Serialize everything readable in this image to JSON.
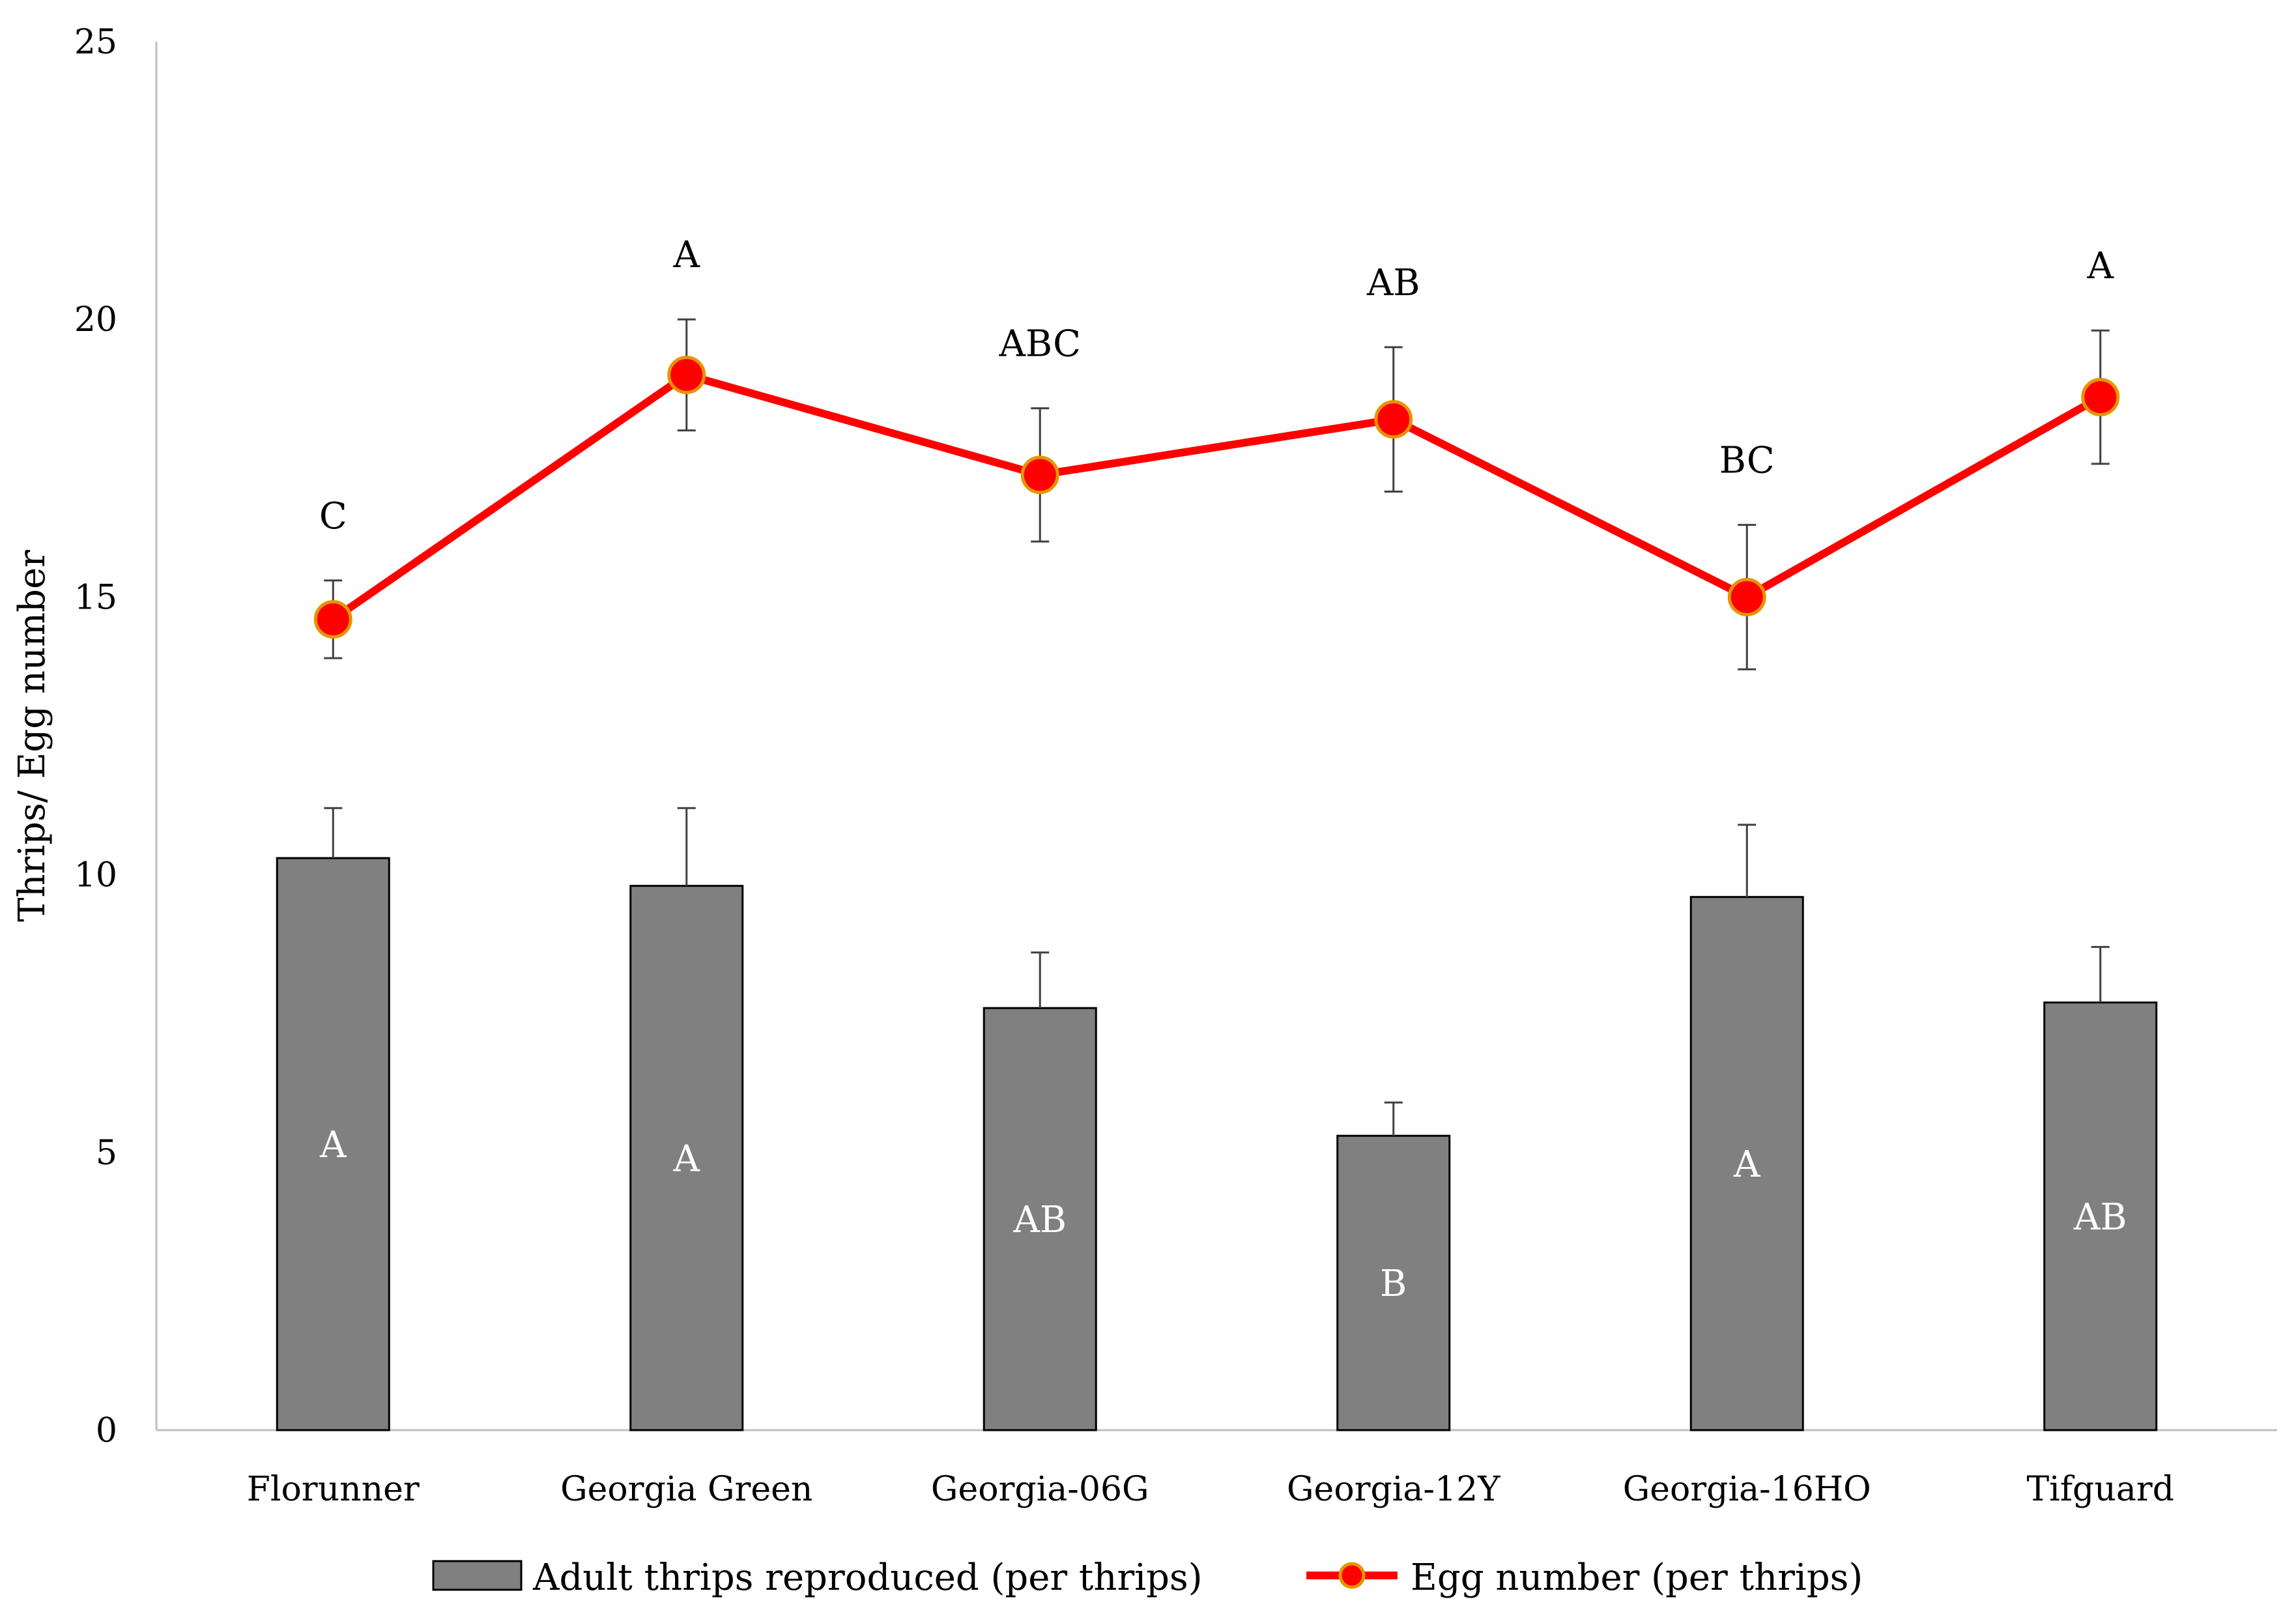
{
  "chart_data": {
    "type": "bar",
    "title": "",
    "xlabel": "",
    "ylabel": "Thrips/ Egg number",
    "ylim": [
      0,
      25
    ],
    "yticks": [
      0,
      5,
      10,
      15,
      20,
      25
    ],
    "grid": false,
    "legend_position": "bottom",
    "categories": [
      "Florunner",
      "Georgia Green",
      "Georgia-06G",
      "Georgia-12Y",
      "Georgia-16HO",
      "Tifguard"
    ],
    "series": [
      {
        "name": "Adult thrips reproduced (per thrips)",
        "kind": "bar",
        "color": "#808080",
        "values": [
          10.3,
          9.8,
          7.6,
          5.3,
          9.6,
          7.7
        ],
        "error": [
          0.9,
          1.4,
          1.0,
          0.6,
          1.3,
          1.0
        ],
        "significance": [
          "A",
          "A",
          "AB",
          "B",
          "A",
          "AB"
        ]
      },
      {
        "name": "Egg number (per thrips)",
        "kind": "line",
        "color": "#ff0000",
        "marker_edge": "#e69500",
        "values": [
          14.6,
          19.0,
          17.2,
          18.2,
          15.0,
          18.6
        ],
        "error": [
          0.7,
          1.0,
          1.2,
          1.3,
          1.3,
          1.2
        ],
        "significance": [
          "C",
          "A",
          "ABC",
          "AB",
          "BC",
          "A"
        ]
      }
    ]
  }
}
